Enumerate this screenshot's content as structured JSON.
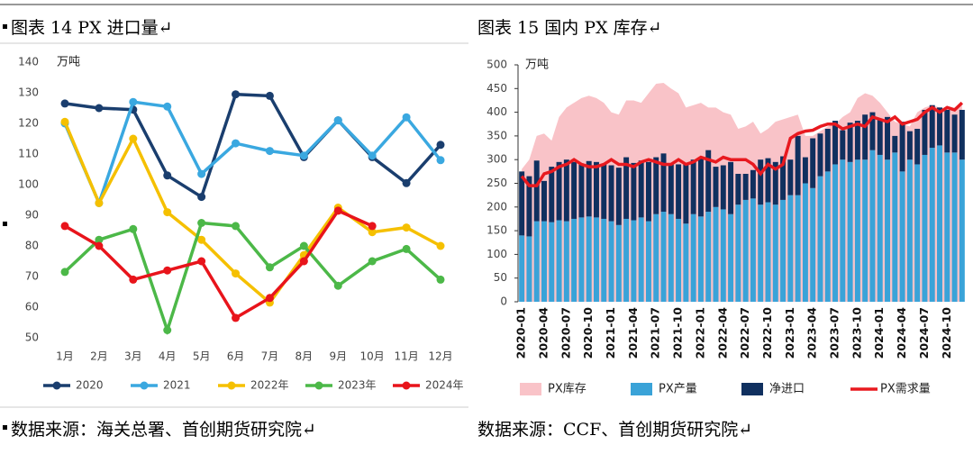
{
  "chart_data": [
    {
      "type": "line",
      "title": "图表 14 PX 进口量↵",
      "source": "数据来源：海关总署、首创期货研究院↵",
      "y_label": "万吨",
      "categories": [
        "1月",
        "2月",
        "3月",
        "4月",
        "5月",
        "6月",
        "7月",
        "8月",
        "9月",
        "10月",
        "11月",
        "12月"
      ],
      "ylim": [
        50,
        140
      ],
      "yticks": [
        50,
        60,
        70,
        80,
        90,
        100,
        110,
        120,
        130,
        140
      ],
      "series": [
        {
          "name": "2020",
          "color": "#1a3e6e",
          "values": [
            126.5,
            125,
            124.5,
            103,
            96,
            129.5,
            129,
            109,
            121,
            109,
            100.5,
            113
          ]
        },
        {
          "name": "2021",
          "color": "#3aa8e0",
          "values": [
            120,
            94,
            127,
            125.5,
            103.5,
            113.5,
            111,
            109.5,
            121,
            109.5,
            122,
            108
          ]
        },
        {
          "name": "2022年",
          "color": "#f5c000",
          "values": [
            120.5,
            94,
            115,
            91,
            82,
            71,
            61.5,
            77,
            92.5,
            84.5,
            86,
            80
          ]
        },
        {
          "name": "2023年",
          "color": "#4cb848",
          "values": [
            71.5,
            82,
            85.5,
            52.5,
            87.5,
            86.5,
            73,
            80,
            67,
            75,
            79,
            69
          ]
        },
        {
          "name": "2024年",
          "color": "#e8141b",
          "values": [
            86.5,
            80,
            69,
            72,
            75,
            56.5,
            63,
            75,
            91.5,
            86.5,
            null,
            null
          ]
        }
      ]
    },
    {
      "type": "combo",
      "title": "图表 15 国内 PX 库存↵",
      "source": "数据来源：CCF、首创期货研究院↵",
      "y_label": "万吨",
      "categories": [
        "2020-01",
        null,
        null,
        "2020-04",
        null,
        null,
        "2020-07",
        null,
        null,
        "2020-10",
        null,
        null,
        "2021-01",
        null,
        null,
        "2021-04",
        null,
        null,
        "2021-07",
        null,
        null,
        "2021-10",
        null,
        null,
        "2022-01",
        null,
        null,
        "2022-04",
        null,
        null,
        "2022-07",
        null,
        null,
        "2022-10",
        null,
        null,
        "2023-01",
        null,
        null,
        "2023-04",
        null,
        null,
        "2023-07",
        null,
        null,
        "2023-10",
        null,
        null,
        "2024-01",
        null,
        null,
        "2024-04",
        null,
        null,
        "2024-07",
        null,
        null,
        "2024-10",
        null,
        null
      ],
      "ylim": [
        0,
        500
      ],
      "yticks": [
        0,
        50,
        100,
        150,
        200,
        250,
        300,
        350,
        400,
        450,
        500
      ],
      "series": [
        {
          "name": "PX库存",
          "kind": "area",
          "color": "#f9c3c8",
          "values": [
            280,
            300,
            350,
            355,
            340,
            390,
            410,
            420,
            430,
            435,
            430,
            420,
            400,
            395,
            425,
            425,
            420,
            440,
            460,
            462,
            450,
            440,
            410,
            415,
            420,
            410,
            410,
            400,
            395,
            365,
            370,
            380,
            355,
            365,
            380,
            385,
            390,
            395,
            350,
            350,
            360,
            370,
            375,
            390,
            400,
            430,
            440,
            435,
            420,
            400,
            380,
            375,
            370,
            400,
            410,
            415,
            410,
            400,
            410,
            420
          ]
        },
        {
          "name": "PX产量",
          "kind": "bar",
          "color": "#3aa3d8",
          "values": [
            140,
            138,
            170,
            170,
            168,
            172,
            170,
            175,
            178,
            180,
            178,
            175,
            170,
            162,
            175,
            172,
            178,
            170,
            185,
            190,
            185,
            175,
            165,
            185,
            180,
            190,
            200,
            195,
            185,
            205,
            215,
            218,
            205,
            210,
            205,
            215,
            225,
            225,
            250,
            240,
            265,
            275,
            290,
            300,
            295,
            300,
            300,
            320,
            310,
            300,
            315,
            275,
            300,
            290,
            310,
            325,
            330,
            315,
            315,
            300
          ]
        },
        {
          "name": "净进口",
          "kind": "bar",
          "color": "#10305f",
          "values": [
            135,
            127,
            128,
            85,
            117,
            123,
            130,
            120,
            112,
            117,
            117,
            115,
            118,
            121,
            130,
            121,
            120,
            125,
            120,
            123,
            105,
            115,
            125,
            115,
            125,
            130,
            85,
            93,
            110,
            65,
            55,
            60,
            95,
            93,
            90,
            92,
            75,
            125,
            55,
            105,
            90,
            90,
            92,
            62,
            83,
            82,
            95,
            80,
            75,
            90,
            35,
            105,
            60,
            75,
            95,
            90,
            80,
            90,
            80,
            105
          ]
        },
        {
          "name": "PX需求量",
          "kind": "line",
          "color": "#e8191f",
          "values": [
            265,
            245,
            245,
            270,
            275,
            285,
            290,
            300,
            290,
            285,
            285,
            290,
            300,
            290,
            290,
            285,
            295,
            300,
            295,
            290,
            290,
            300,
            290,
            295,
            305,
            300,
            295,
            305,
            300,
            300,
            300,
            290,
            270,
            290,
            280,
            290,
            345,
            355,
            360,
            362,
            370,
            375,
            375,
            365,
            370,
            375,
            370,
            390,
            385,
            380,
            390,
            375,
            380,
            385,
            400,
            410,
            400,
            410,
            405,
            420
          ]
        }
      ]
    }
  ]
}
